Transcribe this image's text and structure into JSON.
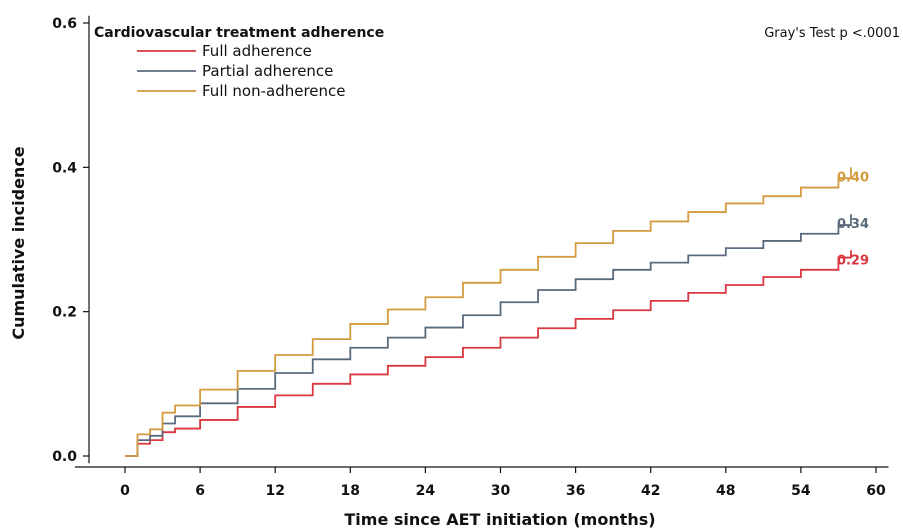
{
  "chart_data": {
    "type": "line",
    "title": "",
    "xlabel": "Time since AET initiation (months)",
    "ylabel": "Cumulative incidence",
    "xlim": [
      -4,
      61
    ],
    "ylim": [
      -0.01,
      0.61
    ],
    "x_ticks": [
      0,
      6,
      12,
      18,
      24,
      30,
      36,
      42,
      48,
      54,
      60
    ],
    "x_tick_labels": [
      "0",
      "6",
      "12",
      "18",
      "24",
      "30",
      "36",
      "42",
      "48",
      "54",
      "60"
    ],
    "y_ticks": [
      0.0,
      0.2,
      0.4,
      0.6
    ],
    "y_tick_labels": [
      "0.0",
      "0.2",
      "0.4",
      "0.6"
    ],
    "grid": false,
    "legend": {
      "title": "Cardiovascular treatment adherence",
      "position": "top-left"
    },
    "annotation": "Gray's Test p  <.0001",
    "series": [
      {
        "name": "Full adherence",
        "color": "#d9363e",
        "end_label": "0.29",
        "x": [
          0,
          1,
          1,
          2,
          3,
          3,
          4,
          6,
          9,
          12,
          15,
          18,
          21,
          24,
          27,
          30,
          33,
          36,
          39,
          42,
          45,
          48,
          51,
          54,
          57,
          58
        ],
        "y": [
          0,
          0,
          0.017,
          0.022,
          0.027,
          0.033,
          0.038,
          0.05,
          0.068,
          0.084,
          0.1,
          0.113,
          0.125,
          0.137,
          0.15,
          0.164,
          0.177,
          0.19,
          0.202,
          0.215,
          0.226,
          0.237,
          0.248,
          0.258,
          0.275,
          0.285
        ]
      },
      {
        "name": "Partial adherence",
        "color": "#5a6a7d",
        "end_label": "0.34",
        "x": [
          0,
          1,
          1,
          2,
          3,
          3,
          4,
          6,
          9,
          12,
          15,
          18,
          21,
          24,
          27,
          30,
          33,
          36,
          39,
          42,
          45,
          48,
          51,
          54,
          57,
          58
        ],
        "y": [
          0,
          0,
          0.022,
          0.028,
          0.034,
          0.045,
          0.055,
          0.073,
          0.093,
          0.115,
          0.134,
          0.15,
          0.164,
          0.178,
          0.195,
          0.213,
          0.23,
          0.245,
          0.258,
          0.268,
          0.278,
          0.288,
          0.298,
          0.308,
          0.32,
          0.335
        ]
      },
      {
        "name": "Full non-adherence",
        "color": "#d49a3e",
        "end_label": "0.40",
        "x": [
          0,
          1,
          1,
          2,
          3,
          3,
          4,
          6,
          9,
          12,
          15,
          18,
          21,
          24,
          27,
          30,
          33,
          36,
          39,
          42,
          45,
          48,
          51,
          54,
          57,
          58
        ],
        "y": [
          0,
          0,
          0.03,
          0.037,
          0.045,
          0.06,
          0.07,
          0.092,
          0.118,
          0.14,
          0.162,
          0.183,
          0.203,
          0.22,
          0.24,
          0.258,
          0.276,
          0.295,
          0.312,
          0.325,
          0.338,
          0.35,
          0.36,
          0.372,
          0.385,
          0.4
        ]
      }
    ]
  }
}
